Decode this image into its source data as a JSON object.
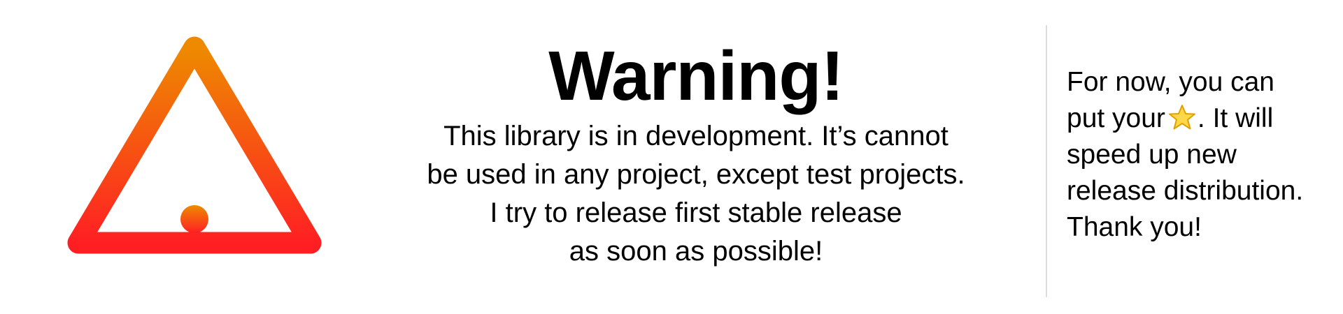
{
  "icons": {
    "warning": "warning-triangle-icon",
    "star": "star-icon"
  },
  "colors": {
    "warning_gradient_top": "#ee8a00",
    "warning_gradient_bottom": "#ff1f23",
    "star_fill": "#ffd84a",
    "divider": "#dedede"
  },
  "main": {
    "title": "Warning!",
    "lines": [
      "This library is in development. It’s cannot",
      "be used in any project, except test projects.",
      "I try to release first stable release",
      "as soon as possible!"
    ]
  },
  "side": {
    "line1": "For now, you can",
    "line2_before": "put your",
    "line2_after": ". It will",
    "line3": "speed up new",
    "line4": "release distribution.",
    "line5": "Thank you!"
  }
}
